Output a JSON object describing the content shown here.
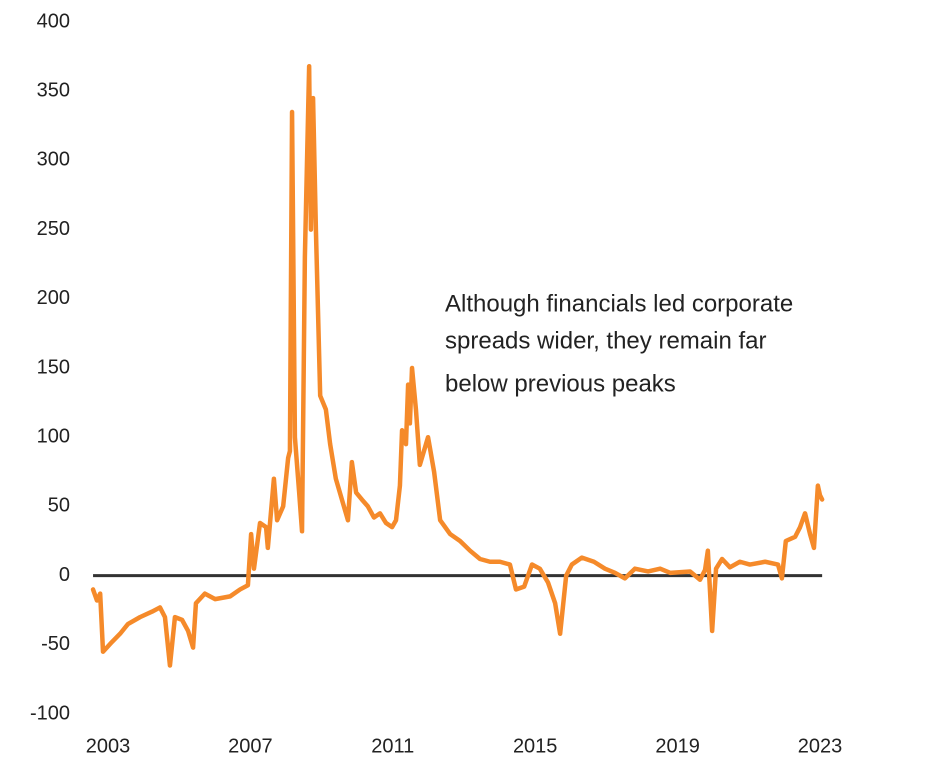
{
  "chart_data": {
    "type": "line",
    "annotation": [
      "Although financials led corporate",
      "spreads wider, they remain far",
      "below previous peaks"
    ],
    "x": [
      2002.58,
      2002.69,
      2002.78,
      2002.86,
      2003.11,
      2003.34,
      2003.56,
      2003.9,
      2004.24,
      2004.46,
      2004.6,
      2004.74,
      2004.88,
      2005.08,
      2005.25,
      2005.39,
      2005.47,
      2005.72,
      2006.01,
      2006.43,
      2006.71,
      2006.93,
      2007.02,
      2007.1,
      2007.27,
      2007.44,
      2007.49,
      2007.66,
      2007.75,
      2007.92,
      2008.06,
      2008.11,
      2008.17,
      2008.25,
      2008.37,
      2008.45,
      2008.53,
      2008.65,
      2008.7,
      2008.76,
      2008.84,
      2008.96,
      2009.12,
      2009.24,
      2009.4,
      2009.57,
      2009.74,
      2009.85,
      2009.97,
      2010.13,
      2010.3,
      2010.47,
      2010.64,
      2010.81,
      2010.98,
      2011.09,
      2011.2,
      2011.26,
      2011.37,
      2011.43,
      2011.48,
      2011.54,
      2011.65,
      2011.76,
      2011.99,
      2012.16,
      2012.33,
      2012.61,
      2012.89,
      2013.17,
      2013.45,
      2013.73,
      2014.01,
      2014.29,
      2014.46,
      2014.69,
      2014.91,
      2015.13,
      2015.36,
      2015.56,
      2015.7,
      2015.87,
      2016.03,
      2016.31,
      2016.65,
      2016.96,
      2017.24,
      2017.52,
      2017.8,
      2018.17,
      2018.51,
      2018.79,
      2019.35,
      2019.63,
      2019.77,
      2019.85,
      2019.97,
      2020.08,
      2020.25,
      2020.47,
      2020.75,
      2021.03,
      2021.46,
      2021.82,
      2021.93,
      2022.04,
      2022.3,
      2022.44,
      2022.58,
      2022.72,
      2022.83,
      2022.94,
      2023.0,
      2023.06
    ],
    "series": [
      {
        "color": "#f58a2a",
        "values": [
          -10,
          -18,
          -13,
          -55,
          -48,
          -42,
          -35,
          -30,
          -26,
          -23,
          -30,
          -65,
          -30,
          -32,
          -40,
          -52,
          -20,
          -13,
          -17,
          -15,
          -10,
          -7,
          30,
          5,
          38,
          35,
          20,
          70,
          40,
          50,
          85,
          90,
          335,
          100,
          60,
          32,
          230,
          368,
          250,
          345,
          250,
          130,
          120,
          95,
          70,
          55,
          40,
          82,
          60,
          55,
          50,
          42,
          45,
          38,
          35,
          40,
          65,
          105,
          95,
          138,
          110,
          150,
          120,
          80,
          100,
          75,
          40,
          30,
          25,
          18,
          12,
          10,
          10,
          8,
          -10,
          -8,
          8,
          5,
          -5,
          -20,
          -42,
          0,
          8,
          13,
          10,
          5,
          2,
          -2,
          5,
          3,
          5,
          2,
          3,
          -3,
          4,
          18,
          -40,
          5,
          12,
          6,
          10,
          8,
          10,
          8,
          -2,
          25,
          28,
          35,
          45,
          30,
          20,
          65,
          58,
          55
        ]
      }
    ],
    "xlim": [
      2002.5,
      2025
    ],
    "xticks": [
      2003,
      2007,
      2011,
      2015,
      2019,
      2023
    ],
    "ylim": [
      -100,
      400
    ],
    "yticks": [
      -100,
      -50,
      0,
      50,
      100,
      150,
      200,
      250,
      300,
      350,
      400
    ],
    "zero_line_color": "#333333"
  }
}
